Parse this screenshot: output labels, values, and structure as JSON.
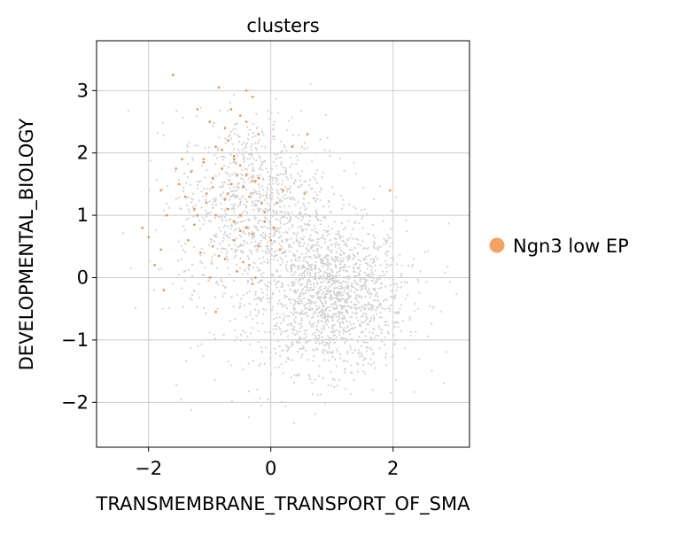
{
  "chart_data": {
    "type": "scatter",
    "title": "clusters",
    "xlabel": "TRANSMEMBRANE_TRANSPORT_OF_SMA",
    "ylabel": "DEVELOPMENTAL_BIOLOGY",
    "xlim": [
      -2.85,
      3.25
    ],
    "ylim": [
      -2.72,
      3.8
    ],
    "x_ticks": [
      -2,
      0,
      2
    ],
    "y_ticks": [
      -2,
      -1,
      0,
      1,
      2,
      3
    ],
    "x_tick_labels": [
      "−2",
      "0",
      "2"
    ],
    "y_tick_labels": [
      "−2",
      "−1",
      "0",
      "1",
      "2",
      "3"
    ],
    "grid": true,
    "legend_position": "right",
    "background_points": {
      "color": "#d3d3d3",
      "count": 2600,
      "clusters": [
        {
          "center": [
            1.0,
            -0.3
          ],
          "spread": [
            0.6,
            0.6
          ],
          "weight": 0.55
        },
        {
          "center": [
            -0.3,
            1.2
          ],
          "spread": [
            0.6,
            0.7
          ],
          "weight": 0.35
        },
        {
          "center": [
            0.2,
            0.0
          ],
          "spread": [
            1.1,
            1.0
          ],
          "weight": 0.1
        }
      ]
    },
    "series": [
      {
        "name": "Ngn3 low EP",
        "color": "#f4a261",
        "points_color": "#ef8c3e",
        "x": [
          -1.6,
          -1.2,
          -1.0,
          -0.85,
          -0.9,
          -0.75,
          -0.6,
          -0.7,
          -0.5,
          -0.4,
          -0.3,
          -0.2,
          -1.3,
          -1.1,
          -0.95,
          -0.8,
          -0.65,
          -0.55,
          -0.45,
          -0.35,
          -0.25,
          -0.15,
          -1.5,
          -1.4,
          -1.25,
          -1.05,
          -0.9,
          -0.7,
          -0.6,
          -0.5,
          -0.4,
          -0.3,
          -0.1,
          0.0,
          0.1,
          -1.8,
          -1.7,
          -2.0,
          -2.1,
          -1.9,
          -1.75,
          -1.35,
          -1.15,
          -0.95,
          -0.75,
          -0.55,
          -0.35,
          -0.2,
          0.05,
          0.2,
          0.35,
          0.55,
          0.6,
          -0.6,
          -0.45,
          -0.3,
          -0.9,
          -1.0,
          -1.1,
          -0.8,
          -0.7,
          -0.5,
          -0.4,
          -0.25,
          -1.2,
          -0.65,
          -0.85,
          -1.45,
          -1.55,
          -0.2,
          0.15,
          1.95,
          -1.8,
          -0.1,
          -0.4,
          -0.6,
          -0.95,
          -0.3,
          -0.5,
          -0.75,
          -1.05,
          -1.25
        ],
        "y": [
          3.25,
          2.7,
          2.5,
          3.05,
          2.1,
          2.4,
          1.9,
          2.2,
          1.8,
          2.5,
          2.9,
          2.3,
          1.7,
          1.9,
          1.6,
          1.75,
          1.5,
          1.65,
          1.45,
          1.3,
          1.55,
          1.2,
          1.5,
          1.3,
          1.1,
          1.2,
          1.0,
          1.1,
          0.9,
          1.0,
          0.8,
          0.7,
          0.9,
          0.6,
          1.2,
          1.4,
          1.0,
          0.65,
          0.8,
          0.2,
          -0.2,
          0.6,
          0.4,
          0.5,
          0.3,
          0.1,
          0.2,
          0.5,
          0.8,
          1.4,
          2.1,
          1.35,
          2.3,
          0.6,
          0.25,
          -0.1,
          -0.55,
          0.0,
          1.85,
          2.05,
          1.35,
          2.6,
          3.0,
          0.0,
          1.0,
          2.7,
          0.35,
          1.9,
          1.75,
          1.6,
          0.45,
          1.4,
          0.45,
          1.05,
          1.65,
          1.95,
          1.45,
          1.55,
          0.75,
          1.25,
          1.35,
          0.85
        ]
      }
    ]
  }
}
